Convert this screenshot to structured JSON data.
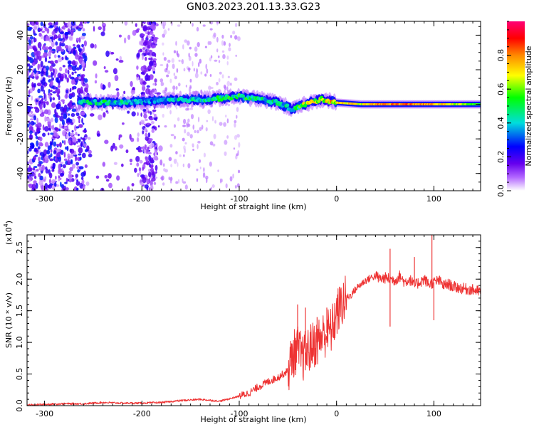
{
  "title": "GN03.2023.201.13.33.G23",
  "chart_data": [
    {
      "type": "heatmap",
      "xlabel": "Height of straight line (km)",
      "ylabel": "Frequency (Hz)",
      "xlim": [
        -318,
        148
      ],
      "ylim": [
        -50,
        48
      ],
      "xticks": [
        -300,
        -200,
        -100,
        0,
        100
      ],
      "xtick_labels": [
        "-300",
        "-200",
        "-100",
        "0",
        "100"
      ],
      "yticks": [
        -40,
        -20,
        0,
        20,
        40
      ],
      "ytick_labels": [
        "-40",
        "-20",
        "0",
        "20",
        "40"
      ],
      "colorbar": {
        "label": "Normalized spectral amplitude",
        "range": [
          0,
          1
        ],
        "ticks": [
          0.0,
          0.2,
          0.4,
          0.6,
          0.8
        ],
        "tick_labels": [
          "0.0",
          "0.2",
          "0.4",
          "0.6",
          "0.8"
        ],
        "colormap": "rainbow (white-purple-blue-cyan-green-yellow-orange-red-magenta)"
      },
      "ridge": {
        "description": "dominant Doppler frequency ridge",
        "points": [
          {
            "x": -265,
            "y": 1.5,
            "amp": 0.45
          },
          {
            "x": -240,
            "y": 1.0,
            "amp": 0.5
          },
          {
            "x": -215,
            "y": 1.0,
            "amp": 0.45
          },
          {
            "x": -190,
            "y": 2.0,
            "amp": 0.4
          },
          {
            "x": -160,
            "y": 2.5,
            "amp": 0.5
          },
          {
            "x": -130,
            "y": 3.0,
            "amp": 0.5
          },
          {
            "x": -100,
            "y": 4.5,
            "amp": 0.55
          },
          {
            "x": -80,
            "y": 3.0,
            "amp": 0.5
          },
          {
            "x": -60,
            "y": 1.0,
            "amp": 0.5
          },
          {
            "x": -45,
            "y": -3.0,
            "amp": 0.45
          },
          {
            "x": -30,
            "y": 0.5,
            "amp": 0.75
          },
          {
            "x": -15,
            "y": 3.0,
            "amp": 0.7
          },
          {
            "x": 0,
            "y": 1.0,
            "amp": 0.8
          },
          {
            "x": 25,
            "y": 0.0,
            "amp": 0.7
          },
          {
            "x": 50,
            "y": 0.0,
            "amp": 0.85
          },
          {
            "x": 75,
            "y": 0.0,
            "amp": 0.85
          },
          {
            "x": 95,
            "y": 0.0,
            "amp": 0.8
          },
          {
            "x": 120,
            "y": 0.0,
            "amp": 0.7
          },
          {
            "x": 148,
            "y": 0.0,
            "amp": 0.55
          }
        ]
      },
      "noise_region": {
        "x_from": -318,
        "x_to": -180,
        "y_from": -50,
        "y_to": 48
      }
    },
    {
      "type": "line",
      "xlabel": "Height of straight line (km)",
      "ylabel": "SNR (10 * v/v)",
      "y_multiplier": "(x10",
      "y_multiplier_exp": "4",
      "y_multiplier_close": ")",
      "xlim": [
        -318,
        148
      ],
      "ylim": [
        0,
        2.7
      ],
      "xticks": [
        -300,
        -200,
        -100,
        0,
        100
      ],
      "xtick_labels": [
        "-300",
        "-200",
        "-100",
        "0",
        "100"
      ],
      "yticks": [
        0.0,
        0.5,
        1.0,
        1.5,
        2.0,
        2.5
      ],
      "ytick_labels": [
        "0.0",
        "0.5",
        "1.0",
        "1.5",
        "2.0",
        "2.5"
      ],
      "series": [
        {
          "color": "#ee3333",
          "x": [
            -318,
            -300,
            -280,
            -260,
            -240,
            -220,
            -200,
            -180,
            -160,
            -140,
            -120,
            -100,
            -90,
            -80,
            -70,
            -60,
            -50,
            -45,
            -40,
            -35,
            -30,
            -25,
            -20,
            -15,
            -10,
            -5,
            0,
            5,
            10,
            15,
            20,
            25,
            30,
            35,
            40,
            45,
            50,
            55,
            60,
            65,
            70,
            75,
            80,
            85,
            90,
            95,
            100,
            105,
            110,
            115,
            120,
            130,
            140,
            148
          ],
          "y": [
            0.01,
            0.02,
            0.03,
            0.03,
            0.05,
            0.04,
            0.04,
            0.05,
            0.08,
            0.1,
            0.07,
            0.15,
            0.2,
            0.3,
            0.38,
            0.45,
            0.55,
            0.8,
            0.9,
            0.75,
            0.85,
            0.95,
            1.0,
            1.1,
            1.15,
            1.2,
            1.45,
            1.6,
            1.7,
            1.75,
            1.85,
            1.92,
            1.98,
            2.02,
            2.05,
            2.0,
            2.02,
            2.0,
            1.98,
            2.05,
            1.95,
            2.0,
            1.9,
            1.95,
            2.0,
            1.92,
            1.95,
            1.98,
            1.9,
            1.92,
            1.88,
            1.85,
            1.83,
            1.8
          ]
        }
      ],
      "spikes": [
        {
          "x": -40,
          "y": 1.6
        },
        {
          "x": -32,
          "y": 1.55
        },
        {
          "x": -20,
          "y": 1.4
        },
        {
          "x": -10,
          "y": 1.55
        },
        {
          "x": 55,
          "y": 2.48
        },
        {
          "x": 55,
          "y": 1.25
        },
        {
          "x": 98,
          "y": 2.7
        },
        {
          "x": 100,
          "y": 1.35
        },
        {
          "x": 80,
          "y": 2.35
        }
      ]
    }
  ]
}
